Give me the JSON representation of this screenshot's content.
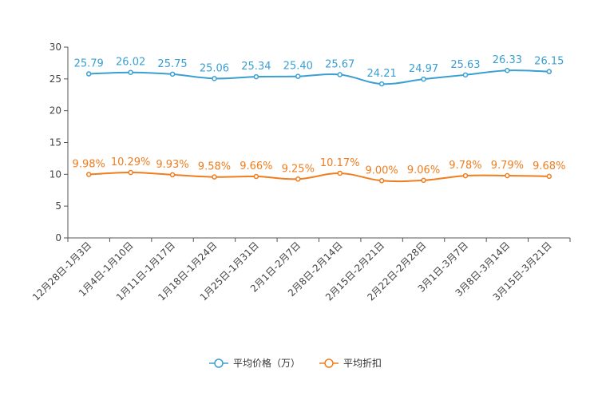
{
  "chart_data": {
    "type": "line",
    "title": "",
    "xlabel": "",
    "ylabel": "",
    "ylim": [
      0,
      30
    ],
    "yticks": [
      0,
      5,
      10,
      15,
      20,
      25,
      30
    ],
    "grid": false,
    "legend_position": "bottom-center",
    "categories": [
      "12月28日-1月3日",
      "1月4日-1月10日",
      "1月11日-1月17日",
      "1月18日-1月24日",
      "1月25日-1月31日",
      "2月1日-2月7日",
      "2月8日-2月14日",
      "2月15日-2月21日",
      "2月22日-2月28日",
      "3月1日-3月7日",
      "3月8日-3月14日",
      "3月15日-3月21日"
    ],
    "series": [
      {
        "name": "平均价格（万）",
        "color": "#3a9fd2",
        "values": [
          25.79,
          26.02,
          25.75,
          25.06,
          25.34,
          25.4,
          25.67,
          24.21,
          24.97,
          25.63,
          26.33,
          26.15
        ],
        "labels": [
          "25.79",
          "26.02",
          "25.75",
          "25.06",
          "25.34",
          "25.40",
          "25.67",
          "24.21",
          "24.97",
          "25.63",
          "26.33",
          "26.15"
        ]
      },
      {
        "name": "平均折扣",
        "color": "#f07d1e",
        "values": [
          9.98,
          10.29,
          9.93,
          9.58,
          9.66,
          9.25,
          10.17,
          9.0,
          9.06,
          9.78,
          9.79,
          9.68
        ],
        "labels": [
          "9.98%",
          "10.29%",
          "9.93%",
          "9.58%",
          "9.66%",
          "9.25%",
          "10.17%",
          "9.00%",
          "9.06%",
          "9.78%",
          "9.79%",
          "9.68%"
        ]
      }
    ]
  }
}
